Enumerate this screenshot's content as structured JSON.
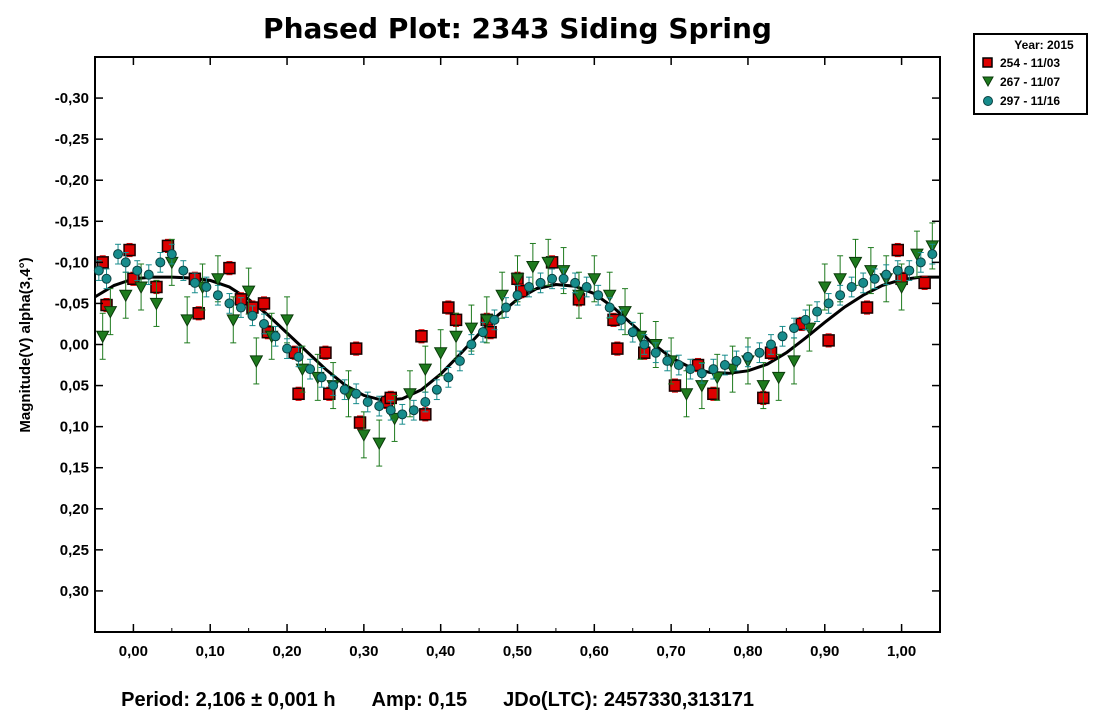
{
  "chart_data": {
    "type": "scatter",
    "title": "Phased Plot: 2343 Siding Spring",
    "ylabel": "Magnitude(V) alpha(3,4°)",
    "xlabel": "",
    "xlim": [
      -0.05,
      1.05
    ],
    "ylim": [
      -0.35,
      0.35
    ],
    "y_inverted": true,
    "x_ticks": [
      "0,00",
      "0,10",
      "0,20",
      "0,30",
      "0,40",
      "0,50",
      "0,60",
      "0,70",
      "0,80",
      "0,90",
      "1,00"
    ],
    "x_tick_values": [
      0,
      0.1,
      0.2,
      0.3,
      0.4,
      0.5,
      0.6,
      0.7,
      0.8,
      0.9,
      1.0
    ],
    "y_ticks": [
      "-0,30",
      "-0,25",
      "-0,20",
      "-0,15",
      "-0,10",
      "-0,05",
      "0,00",
      "0,05",
      "0,10",
      "0,15",
      "0,20",
      "0,25",
      "0,30"
    ],
    "y_tick_values": [
      -0.3,
      -0.25,
      -0.2,
      -0.15,
      -0.1,
      -0.05,
      0,
      0.05,
      0.1,
      0.15,
      0.2,
      0.25,
      0.3
    ],
    "legend": {
      "title": "Year: 2015",
      "placement": "top-right, outside plot",
      "entries": [
        "254 - 11/03",
        "267 - 11/07",
        "297 - 11/16"
      ]
    },
    "fit_curve": {
      "color": "#000000",
      "x": [
        -0.05,
        -0.025,
        0.0,
        0.025,
        0.05,
        0.075,
        0.1,
        0.125,
        0.15,
        0.175,
        0.2,
        0.225,
        0.25,
        0.275,
        0.3,
        0.325,
        0.35,
        0.375,
        0.4,
        0.425,
        0.45,
        0.475,
        0.5,
        0.525,
        0.55,
        0.575,
        0.6,
        0.625,
        0.65,
        0.675,
        0.7,
        0.725,
        0.75,
        0.775,
        0.8,
        0.825,
        0.85,
        0.875,
        0.9,
        0.925,
        0.95,
        0.975,
        1.0,
        1.025,
        1.05
      ],
      "y": [
        -0.058,
        -0.072,
        -0.08,
        -0.082,
        -0.082,
        -0.081,
        -0.078,
        -0.07,
        -0.055,
        -0.036,
        -0.014,
        0.008,
        0.03,
        0.049,
        0.062,
        0.068,
        0.066,
        0.055,
        0.036,
        0.012,
        -0.013,
        -0.036,
        -0.055,
        -0.068,
        -0.073,
        -0.071,
        -0.062,
        -0.045,
        -0.024,
        -0.002,
        0.016,
        0.028,
        0.034,
        0.035,
        0.032,
        0.024,
        0.01,
        -0.008,
        -0.027,
        -0.045,
        -0.06,
        -0.072,
        -0.079,
        -0.082,
        -0.082
      ]
    },
    "series": [
      {
        "name": "254 - 11/03",
        "marker": "square",
        "color": "#dd0000",
        "x": [
          -0.04,
          -0.035,
          -0.005,
          0.0,
          0.03,
          0.045,
          0.08,
          0.085,
          0.125,
          0.17,
          0.175,
          0.21,
          0.215,
          0.25,
          0.255,
          0.29,
          0.295,
          0.33,
          0.335,
          0.375,
          0.38,
          0.41,
          0.42,
          0.46,
          0.465,
          0.5,
          0.505,
          0.545,
          0.58,
          0.625,
          0.63,
          0.665,
          0.705,
          0.735,
          0.755,
          0.82,
          0.83,
          0.87,
          0.905,
          0.955,
          0.995,
          1.0,
          1.03,
          0.14,
          0.155
        ],
        "y": [
          -0.1,
          -0.048,
          -0.115,
          -0.08,
          -0.07,
          -0.12,
          -0.08,
          -0.038,
          -0.093,
          -0.05,
          -0.015,
          0.01,
          0.06,
          0.01,
          0.06,
          0.005,
          0.095,
          0.07,
          0.065,
          -0.01,
          0.085,
          -0.045,
          -0.03,
          -0.03,
          -0.015,
          -0.08,
          -0.065,
          -0.1,
          -0.055,
          -0.03,
          0.005,
          0.01,
          0.05,
          0.025,
          0.06,
          0.065,
          0.01,
          -0.025,
          -0.005,
          -0.045,
          -0.115,
          -0.08,
          -0.075,
          -0.055,
          -0.045
        ]
      },
      {
        "name": "267 - 11/07",
        "marker": "triangle-down",
        "color": "#1e7a1e",
        "x": [
          -0.04,
          -0.03,
          -0.01,
          0.01,
          0.03,
          0.05,
          0.07,
          0.09,
          0.11,
          0.13,
          0.15,
          0.16,
          0.18,
          0.2,
          0.22,
          0.24,
          0.26,
          0.28,
          0.3,
          0.32,
          0.34,
          0.36,
          0.38,
          0.4,
          0.42,
          0.44,
          0.46,
          0.48,
          0.5,
          0.52,
          0.54,
          0.56,
          0.58,
          0.6,
          0.62,
          0.64,
          0.66,
          0.68,
          0.7,
          0.72,
          0.74,
          0.76,
          0.78,
          0.8,
          0.82,
          0.84,
          0.86,
          0.88,
          0.9,
          0.92,
          0.94,
          0.96,
          0.98,
          1.0,
          1.02,
          1.04
        ],
        "y": [
          -0.01,
          -0.04,
          -0.06,
          -0.07,
          -0.05,
          -0.1,
          -0.03,
          -0.07,
          -0.08,
          -0.03,
          -0.065,
          0.02,
          -0.01,
          -0.03,
          0.03,
          0.04,
          0.05,
          0.06,
          0.11,
          0.12,
          0.09,
          0.06,
          0.03,
          0.01,
          -0.01,
          -0.02,
          -0.03,
          -0.06,
          -0.08,
          -0.095,
          -0.1,
          -0.09,
          -0.06,
          -0.08,
          -0.06,
          -0.04,
          -0.01,
          0.0,
          0.02,
          0.06,
          0.05,
          0.04,
          0.03,
          0.02,
          0.05,
          0.04,
          0.02,
          -0.02,
          -0.07,
          -0.08,
          -0.1,
          -0.09,
          -0.08,
          -0.07,
          -0.11,
          -0.12
        ]
      },
      {
        "name": "297 - 11/16",
        "marker": "circle",
        "color": "#178c8c",
        "x": [
          -0.045,
          -0.035,
          -0.02,
          -0.01,
          0.005,
          0.02,
          0.035,
          0.05,
          0.065,
          0.08,
          0.095,
          0.11,
          0.125,
          0.14,
          0.155,
          0.17,
          0.185,
          0.2,
          0.215,
          0.23,
          0.245,
          0.26,
          0.275,
          0.29,
          0.305,
          0.32,
          0.335,
          0.35,
          0.365,
          0.38,
          0.395,
          0.41,
          0.425,
          0.44,
          0.455,
          0.47,
          0.485,
          0.5,
          0.515,
          0.53,
          0.545,
          0.56,
          0.575,
          0.59,
          0.605,
          0.62,
          0.635,
          0.65,
          0.665,
          0.68,
          0.695,
          0.71,
          0.725,
          0.74,
          0.755,
          0.77,
          0.785,
          0.8,
          0.815,
          0.83,
          0.845,
          0.86,
          0.875,
          0.89,
          0.905,
          0.92,
          0.935,
          0.95,
          0.965,
          0.98,
          0.995,
          1.01,
          1.025,
          1.04
        ],
        "y": [
          -0.09,
          -0.08,
          -0.11,
          -0.1,
          -0.09,
          -0.085,
          -0.1,
          -0.11,
          -0.09,
          -0.075,
          -0.07,
          -0.06,
          -0.05,
          -0.045,
          -0.035,
          -0.025,
          -0.01,
          0.005,
          0.015,
          0.03,
          0.04,
          0.05,
          0.055,
          0.06,
          0.07,
          0.075,
          0.08,
          0.085,
          0.08,
          0.07,
          0.055,
          0.04,
          0.02,
          0.0,
          -0.015,
          -0.03,
          -0.045,
          -0.06,
          -0.07,
          -0.075,
          -0.08,
          -0.08,
          -0.075,
          -0.07,
          -0.06,
          -0.045,
          -0.03,
          -0.015,
          0.0,
          0.01,
          0.02,
          0.025,
          0.03,
          0.035,
          0.03,
          0.025,
          0.02,
          0.015,
          0.01,
          0.0,
          -0.01,
          -0.02,
          -0.03,
          -0.04,
          -0.05,
          -0.06,
          -0.07,
          -0.075,
          -0.08,
          -0.085,
          -0.09,
          -0.09,
          -0.1,
          -0.11
        ]
      }
    ]
  },
  "footer": {
    "period": "Period: 2,106 ± 0,001 h",
    "amp": "Amp: 0,15",
    "jdo": "JDo(LTC): 2457330,313171"
  }
}
